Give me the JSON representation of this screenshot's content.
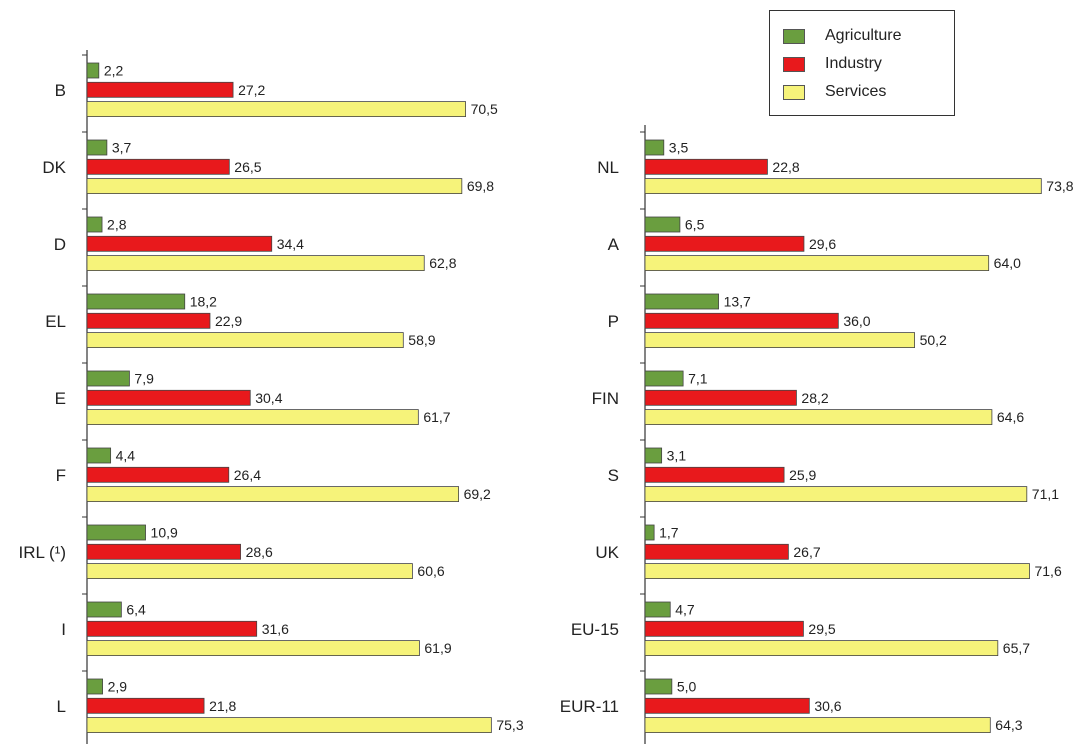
{
  "chart_data": [
    {
      "type": "bar",
      "orientation": "horizontal",
      "categories": [
        "B",
        "DK",
        "D",
        "EL",
        "E",
        "F",
        "IRL (¹)",
        "I",
        "L"
      ],
      "series": [
        {
          "name": "Agriculture",
          "values": [
            2.2,
            3.7,
            2.8,
            18.2,
            7.9,
            4.4,
            10.9,
            6.4,
            2.9
          ],
          "labels": [
            "2,2",
            "3,7",
            "2,8",
            "18,2",
            "7,9",
            "4,4",
            "10,9",
            "6,4",
            "2,9"
          ]
        },
        {
          "name": "Industry",
          "values": [
            27.2,
            26.5,
            34.4,
            22.9,
            30.4,
            26.4,
            28.6,
            31.6,
            21.8
          ],
          "labels": [
            "27,2",
            "26,5",
            "34,4",
            "22,9",
            "30,4",
            "26,4",
            "28,6",
            "31,6",
            "21,8"
          ]
        },
        {
          "name": "Services",
          "values": [
            70.5,
            69.8,
            62.8,
            58.9,
            61.7,
            69.2,
            60.6,
            61.9,
            75.3
          ],
          "labels": [
            "70,5",
            "69,8",
            "62,8",
            "58,9",
            "61,7",
            "69,2",
            "60,6",
            "61,9",
            "75,3"
          ]
        }
      ]
    },
    {
      "type": "bar",
      "orientation": "horizontal",
      "categories": [
        "NL",
        "A",
        "P",
        "FIN",
        "S",
        "UK",
        "EU-15",
        "EUR-11"
      ],
      "series": [
        {
          "name": "Agriculture",
          "values": [
            3.5,
            6.5,
            13.7,
            7.1,
            3.1,
            1.7,
            4.7,
            5.0
          ],
          "labels": [
            "3,5",
            "6,5",
            "13,7",
            "7,1",
            "3,1",
            "1,7",
            "4,7",
            "5,0"
          ]
        },
        {
          "name": "Industry",
          "values": [
            22.8,
            29.6,
            36.0,
            28.2,
            25.9,
            26.7,
            29.5,
            30.6
          ],
          "labels": [
            "22,8",
            "29,6",
            "36,0",
            "28,2",
            "25,9",
            "26,7",
            "29,5",
            "30,6"
          ]
        },
        {
          "name": "Services",
          "values": [
            73.8,
            64.0,
            50.2,
            64.6,
            71.1,
            71.6,
            65.7,
            64.3
          ],
          "labels": [
            "73,8",
            "64,0",
            "50,2",
            "64,6",
            "71,1",
            "71,6",
            "65,7",
            "64,3"
          ]
        }
      ]
    }
  ],
  "legend": {
    "items": [
      {
        "label": "Agriculture",
        "color": "#6a9e3f"
      },
      {
        "label": "Industry",
        "color": "#e8191c"
      },
      {
        "label": "Services",
        "color": "#f6f37a"
      }
    ]
  },
  "colors": {
    "agriculture": "#6a9e3f",
    "industry": "#e8191c",
    "services": "#f6f37a"
  }
}
